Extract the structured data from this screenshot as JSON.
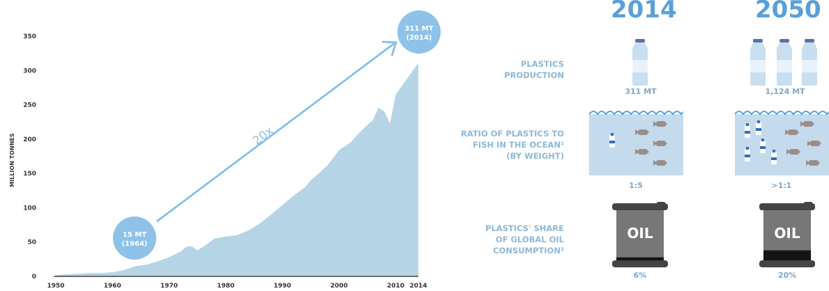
{
  "chart_data": {
    "type": "area",
    "title": "",
    "xlabel": "",
    "ylabel": "MILLION TONNES",
    "xlim": [
      1950,
      2014
    ],
    "ylim": [
      0,
      350
    ],
    "yticks": [
      0,
      50,
      100,
      150,
      200,
      250,
      300,
      350
    ],
    "xtick_labels": [
      "1950",
      "1960",
      "1970",
      "1980",
      "1990",
      "2000",
      "2010",
      "2014"
    ],
    "xticks": [
      1950,
      1960,
      1970,
      1980,
      1990,
      2000,
      2010,
      2014
    ],
    "x": [
      1950,
      1952,
      1954,
      1956,
      1958,
      1960,
      1962,
      1964,
      1966,
      1968,
      1970,
      1972,
      1973,
      1974,
      1975,
      1976,
      1978,
      1980,
      1982,
      1984,
      1986,
      1988,
      1990,
      1992,
      1994,
      1995,
      1996,
      1998,
      2000,
      2002,
      2004,
      2006,
      2007,
      2008,
      2009,
      2010,
      2012,
      2014
    ],
    "y": [
      2,
      3,
      4,
      5,
      5,
      6,
      9,
      15,
      17,
      22,
      28,
      36,
      43,
      44,
      38,
      43,
      55,
      58,
      60,
      67,
      77,
      90,
      104,
      118,
      130,
      140,
      147,
      162,
      184,
      195,
      213,
      228,
      246,
      240,
      223,
      265,
      288,
      311
    ],
    "color": "#b5d5e6",
    "annotations": [
      {
        "label_line1": "15 MT",
        "label_line2": "(1964)",
        "x": 1964,
        "y": 15
      },
      {
        "label_line1": "311 MT",
        "label_line2": "(2014)",
        "x": 2014,
        "y": 311
      }
    ],
    "growth_label": "20x"
  },
  "infographic": {
    "years": [
      "2014",
      "2050"
    ],
    "rows": [
      {
        "label": [
          "PLASTICS",
          "PRODUCTION"
        ],
        "values": [
          "311 MT",
          "1,124 MT"
        ]
      },
      {
        "label": [
          "RATIO OF PLASTICS TO",
          "FISH IN THE OCEAN¹",
          "(BY WEIGHT)"
        ],
        "values": [
          "1:5",
          ">1:1"
        ]
      },
      {
        "label": [
          "PLASTICS' SHARE",
          "OF GLOBAL OIL",
          "CONSUMPTION²"
        ],
        "values": [
          "6%",
          "20%"
        ]
      }
    ],
    "oil_text": "OIL",
    "bottle_counts": [
      1,
      3
    ],
    "oil_fill_fraction": [
      0.06,
      0.2
    ]
  },
  "colors": {
    "accent": "#5aa0d8",
    "area": "#b5d5e6",
    "bubble": "#8ec2e8",
    "water": "#c4dbed",
    "label": "#8fb8d6",
    "barrel": "#707070"
  }
}
